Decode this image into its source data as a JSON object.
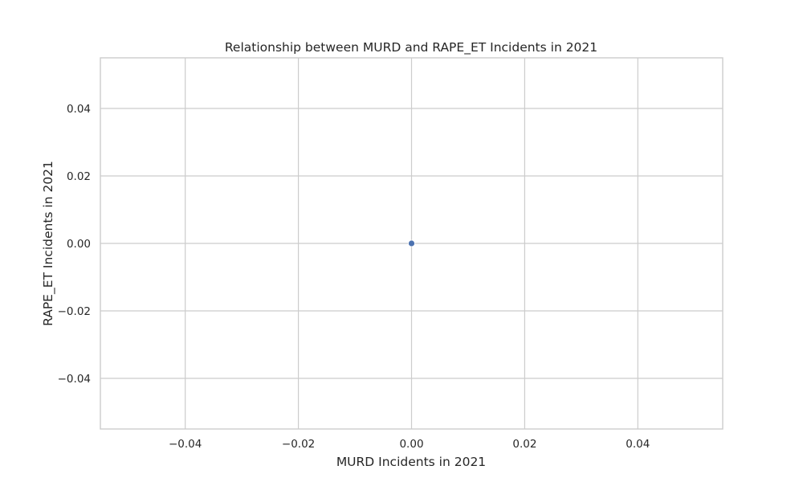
{
  "chart_data": {
    "type": "scatter",
    "title": "Relationship between MURD and RAPE_ET Incidents in 2021",
    "xlabel": "MURD Incidents in 2021",
    "ylabel": "RAPE_ET Incidents in 2021",
    "xlim": [
      -0.055,
      0.055
    ],
    "ylim": [
      -0.055,
      0.055
    ],
    "xticks": [
      -0.04,
      -0.02,
      0.0,
      0.02,
      0.04
    ],
    "yticks": [
      -0.04,
      -0.02,
      0.0,
      0.02,
      0.04
    ],
    "xtick_labels": [
      "−0.04",
      "−0.02",
      "0.00",
      "0.02",
      "0.04"
    ],
    "ytick_labels": [
      "−0.04",
      "−0.02",
      "0.00",
      "0.02",
      "0.04"
    ],
    "grid": true,
    "series": [
      {
        "points": [
          {
            "x": 0,
            "y": 0
          }
        ]
      }
    ],
    "colors": {
      "point": "#4c72b0",
      "grid": "#cccccc",
      "text": "#262626"
    }
  }
}
